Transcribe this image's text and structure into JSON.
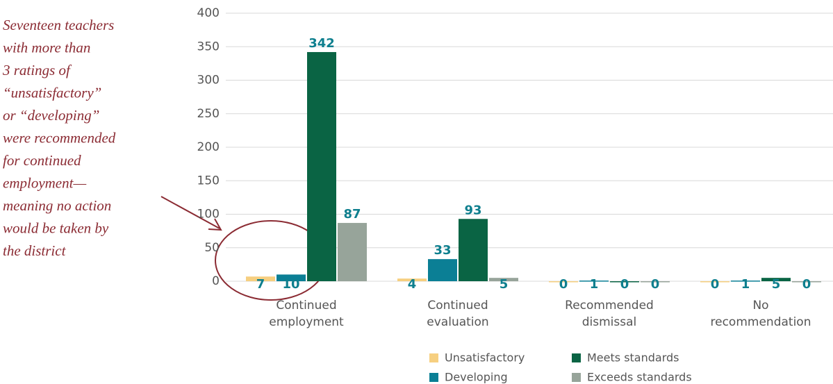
{
  "chart_data": {
    "type": "bar",
    "categories": [
      "Continued employment",
      "Continued evaluation",
      "Recommended dismissal",
      "No recommendation"
    ],
    "series": [
      {
        "name": "Unsatisfactory",
        "color": "#f6cf80",
        "values": [
          7,
          4,
          0,
          0
        ]
      },
      {
        "name": "Developing",
        "color": "#0b7f95",
        "values": [
          10,
          33,
          1,
          1
        ]
      },
      {
        "name": "Meets standards",
        "color": "#0a6444",
        "values": [
          342,
          93,
          0,
          5
        ]
      },
      {
        "name": "Exceeds standards",
        "color": "#97a49a",
        "values": [
          87,
          5,
          0,
          0
        ]
      }
    ],
    "ylim": [
      0,
      400
    ],
    "yticks": [
      0,
      50,
      100,
      150,
      200,
      250,
      300,
      350,
      400
    ],
    "grid": true,
    "annotation": [
      "Seventeen teachers",
      "with more than",
      "3 ratings of",
      "“unsatisfactory”",
      "or “developing”",
      "were recommended",
      "for continued",
      "employment—",
      "meaning no action",
      "would be taken by",
      "the district"
    ],
    "label_color": "#0e7f8e"
  }
}
